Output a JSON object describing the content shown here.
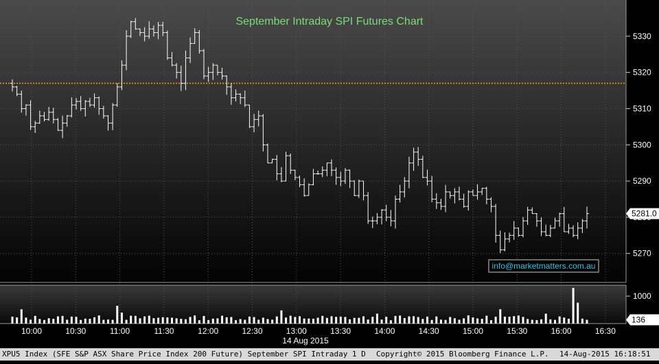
{
  "chart_data": {
    "type": "ohlc",
    "title": "September Intraday SPI Futures Chart",
    "date_label": "14 Aug 2015",
    "x_ticks": [
      "10:00",
      "10:30",
      "11:00",
      "11:30",
      "12:00",
      "12:30",
      "13:00",
      "13:30",
      "14:00",
      "14:30",
      "15:00",
      "15:30",
      "16:00",
      "16:30"
    ],
    "price_ticks": [
      5270,
      5280,
      5290,
      5300,
      5310,
      5320,
      5330
    ],
    "price_ylim": [
      5262,
      5340
    ],
    "volume_ticks": [
      1000
    ],
    "volume_ylim": [
      0,
      1400
    ],
    "reference_line": 5317,
    "last_price": "5281.0",
    "last_volume": "136",
    "series_color_reference": "#f7a21b",
    "bar_color": "#ffffff",
    "closes": [
      5316,
      5314,
      5310,
      5311,
      5305,
      5306,
      5308,
      5307,
      5309,
      5307,
      5304,
      5306,
      5308,
      5311,
      5312,
      5310,
      5312,
      5311,
      5313,
      5310,
      5308,
      5306,
      5311,
      5316,
      5322,
      5330,
      5334,
      5332,
      5331,
      5330,
      5332,
      5331,
      5333,
      5331,
      5324,
      5322,
      5320,
      5317,
      5324,
      5328,
      5331,
      5326,
      5319,
      5320,
      5322,
      5320,
      5319,
      5316,
      5313,
      5314,
      5313,
      5311,
      5305,
      5307,
      5308,
      5300,
      5295,
      5296,
      5292,
      5290,
      5297,
      5293,
      5291,
      5289,
      5286,
      5289,
      5292,
      5292,
      5293,
      5295,
      5293,
      5291,
      5290,
      5293,
      5290,
      5286,
      5290,
      5286,
      5279,
      5279,
      5280,
      5282,
      5280,
      5279,
      5285,
      5287,
      5290,
      5295,
      5298,
      5296,
      5291,
      5290,
      5285,
      5284,
      5283,
      5287,
      5286,
      5287,
      5285,
      5283,
      5287,
      5286,
      5287,
      5288,
      5285,
      5283,
      5275,
      5271,
      5274,
      5275,
      5277,
      5275,
      5279,
      5282,
      5281,
      5279,
      5276,
      5275,
      5277,
      5279,
      5281,
      5276,
      5277,
      5275,
      5277,
      5279,
      5281
    ]
  },
  "watermark": "info@marketmatters.com.au",
  "footer": {
    "security": "XPU5 Index (SFE S&P ASX Share Price Index 200 Future) September SPI Intraday 1 D",
    "copyright": "Copyright© 2015 Bloomberg Finance L.P.",
    "timestamp": "14-Aug-2015 16:18:51"
  }
}
